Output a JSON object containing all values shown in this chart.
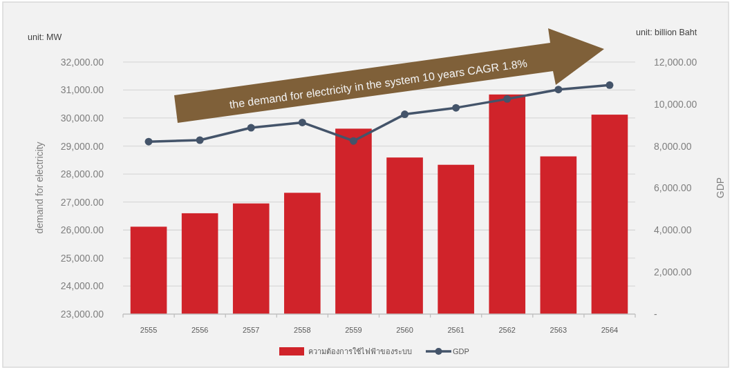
{
  "chart_data": {
    "type": "bar",
    "categories": [
      "2555",
      "2556",
      "2557",
      "2558",
      "2559",
      "2560",
      "2561",
      "2562",
      "2563",
      "2564"
    ],
    "series": [
      {
        "name": "ความต้องการใช้ไฟฟ้าของระบบ",
        "color": "#d0232a",
        "values": [
          26120,
          26600,
          26950,
          27330,
          29620,
          28590,
          28330,
          30840,
          28630,
          30120
        ]
      },
      {
        "name": "GDP",
        "type": "line",
        "axis": "y2",
        "color": "#44546a",
        "values": [
          8210,
          8280,
          8870,
          9120,
          8240,
          9510,
          9820,
          10240,
          10690,
          10900
        ]
      }
    ],
    "ylabel": "demand for electricity",
    "y2label": "GDP",
    "ylim": [
      23000,
      32000
    ],
    "yticks": [
      {
        "value": 23000,
        "label": "23,000.00"
      },
      {
        "value": 24000,
        "label": "24,000.00"
      },
      {
        "value": 25000,
        "label": "25,000.00"
      },
      {
        "value": 26000,
        "label": "26,000.00"
      },
      {
        "value": 27000,
        "label": "27,000.00"
      },
      {
        "value": 28000,
        "label": "28,000.00"
      },
      {
        "value": 29000,
        "label": "29,000.00"
      },
      {
        "value": 30000,
        "label": "30,000.00"
      },
      {
        "value": 31000,
        "label": "31,000.00"
      },
      {
        "value": 32000,
        "label": "32,000.00"
      }
    ],
    "y2lim": [
      0,
      12000
    ],
    "y2ticks": [
      {
        "value": 0,
        "label": "-"
      },
      {
        "value": 2000,
        "label": "2,000.00"
      },
      {
        "value": 4000,
        "label": "4,000.00"
      },
      {
        "value": 6000,
        "label": "6,000.00"
      },
      {
        "value": 8000,
        "label": "8,000.00"
      },
      {
        "value": 10000,
        "label": "10,000.00"
      },
      {
        "value": 12000,
        "label": "12,000.00"
      }
    ],
    "grid": "y",
    "legend": "bottom",
    "marker": "circle",
    "annotations": [
      "unit: MW",
      "unit: billion Baht",
      "the demand for electricity in the system 10 years CAGR  1.8%"
    ]
  }
}
